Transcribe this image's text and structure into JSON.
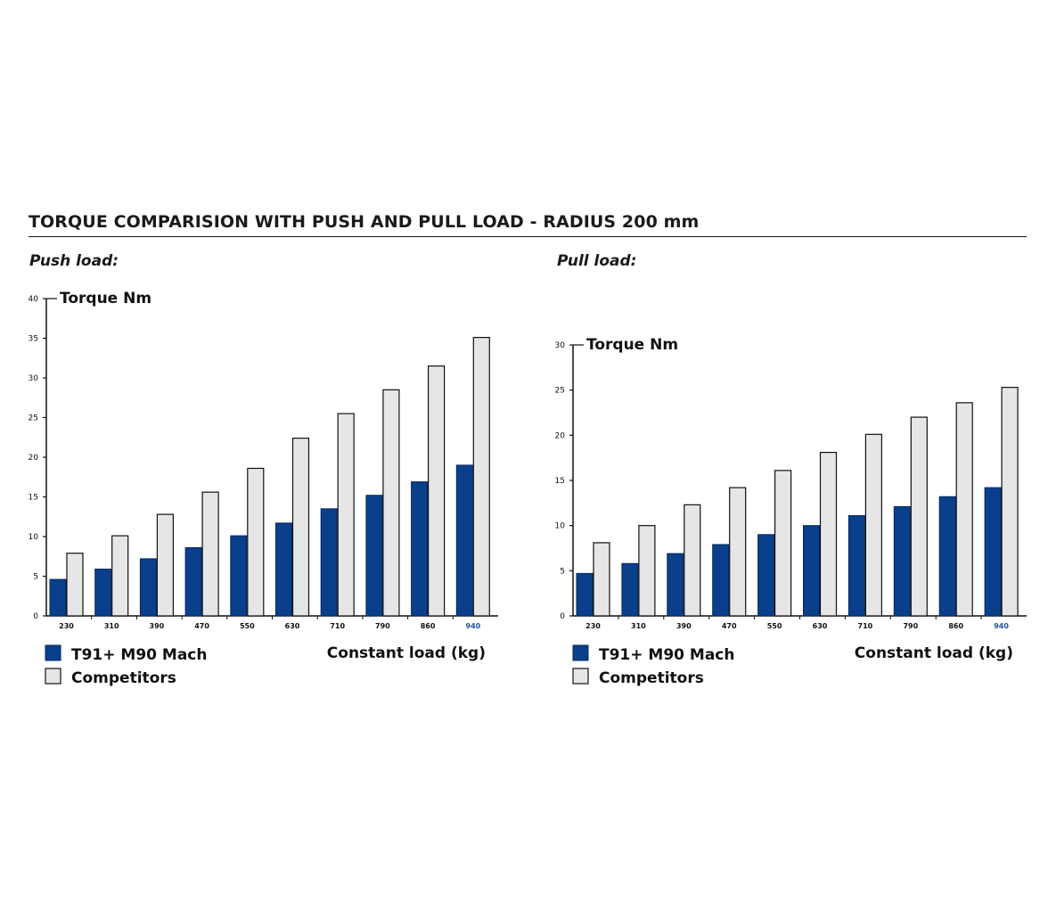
{
  "title": "TORQUE COMPARISION WITH PUSH AND PULL LOAD - RADIUS 200 mm",
  "colors": {
    "series1": "#0a3f8c",
    "series2": "#e6e6e6",
    "axis": "#111111",
    "highlight_tick": "#1f4fa0"
  },
  "chart_data": [
    {
      "type": "bar",
      "heading": "Push load:",
      "ylabel": "Torque Nm",
      "xlabel": "Constant load (kg)",
      "categories": [
        "230",
        "310",
        "390",
        "470",
        "550",
        "630",
        "710",
        "790",
        "860",
        "940"
      ],
      "ylim": [
        0,
        40
      ],
      "yticks": [
        "0",
        "5",
        "10",
        "15",
        "20",
        "25",
        "30",
        "35",
        "40"
      ],
      "series": [
        {
          "name": "T91+ M90 Mach",
          "values": [
            4.6,
            5.9,
            7.2,
            8.6,
            10.1,
            11.7,
            13.5,
            15.2,
            16.9,
            19.0
          ]
        },
        {
          "name": "Competitors",
          "values": [
            7.9,
            10.1,
            12.8,
            15.6,
            18.6,
            22.4,
            25.5,
            28.5,
            31.5,
            35.1
          ]
        }
      ],
      "legend": [
        "T91+ M90 Mach",
        "Competitors"
      ],
      "grid": false
    },
    {
      "type": "bar",
      "heading": "Pull load:",
      "ylabel": "Torque Nm",
      "xlabel": "Constant load (kg)",
      "categories": [
        "230",
        "310",
        "390",
        "470",
        "550",
        "630",
        "710",
        "790",
        "860",
        "940"
      ],
      "ylim": [
        0,
        30
      ],
      "yticks": [
        "0",
        "5",
        "10",
        "15",
        "20",
        "25",
        "30"
      ],
      "series": [
        {
          "name": "T91+ M90 Mach",
          "values": [
            4.7,
            5.8,
            6.9,
            7.9,
            9.0,
            10.0,
            11.1,
            12.1,
            13.2,
            14.2
          ]
        },
        {
          "name": "Competitors",
          "values": [
            8.1,
            10.0,
            12.3,
            14.2,
            16.1,
            18.1,
            20.1,
            22.0,
            23.6,
            25.3
          ]
        }
      ],
      "legend": [
        "T91+ M90 Mach",
        "Competitors"
      ],
      "grid": false
    }
  ]
}
